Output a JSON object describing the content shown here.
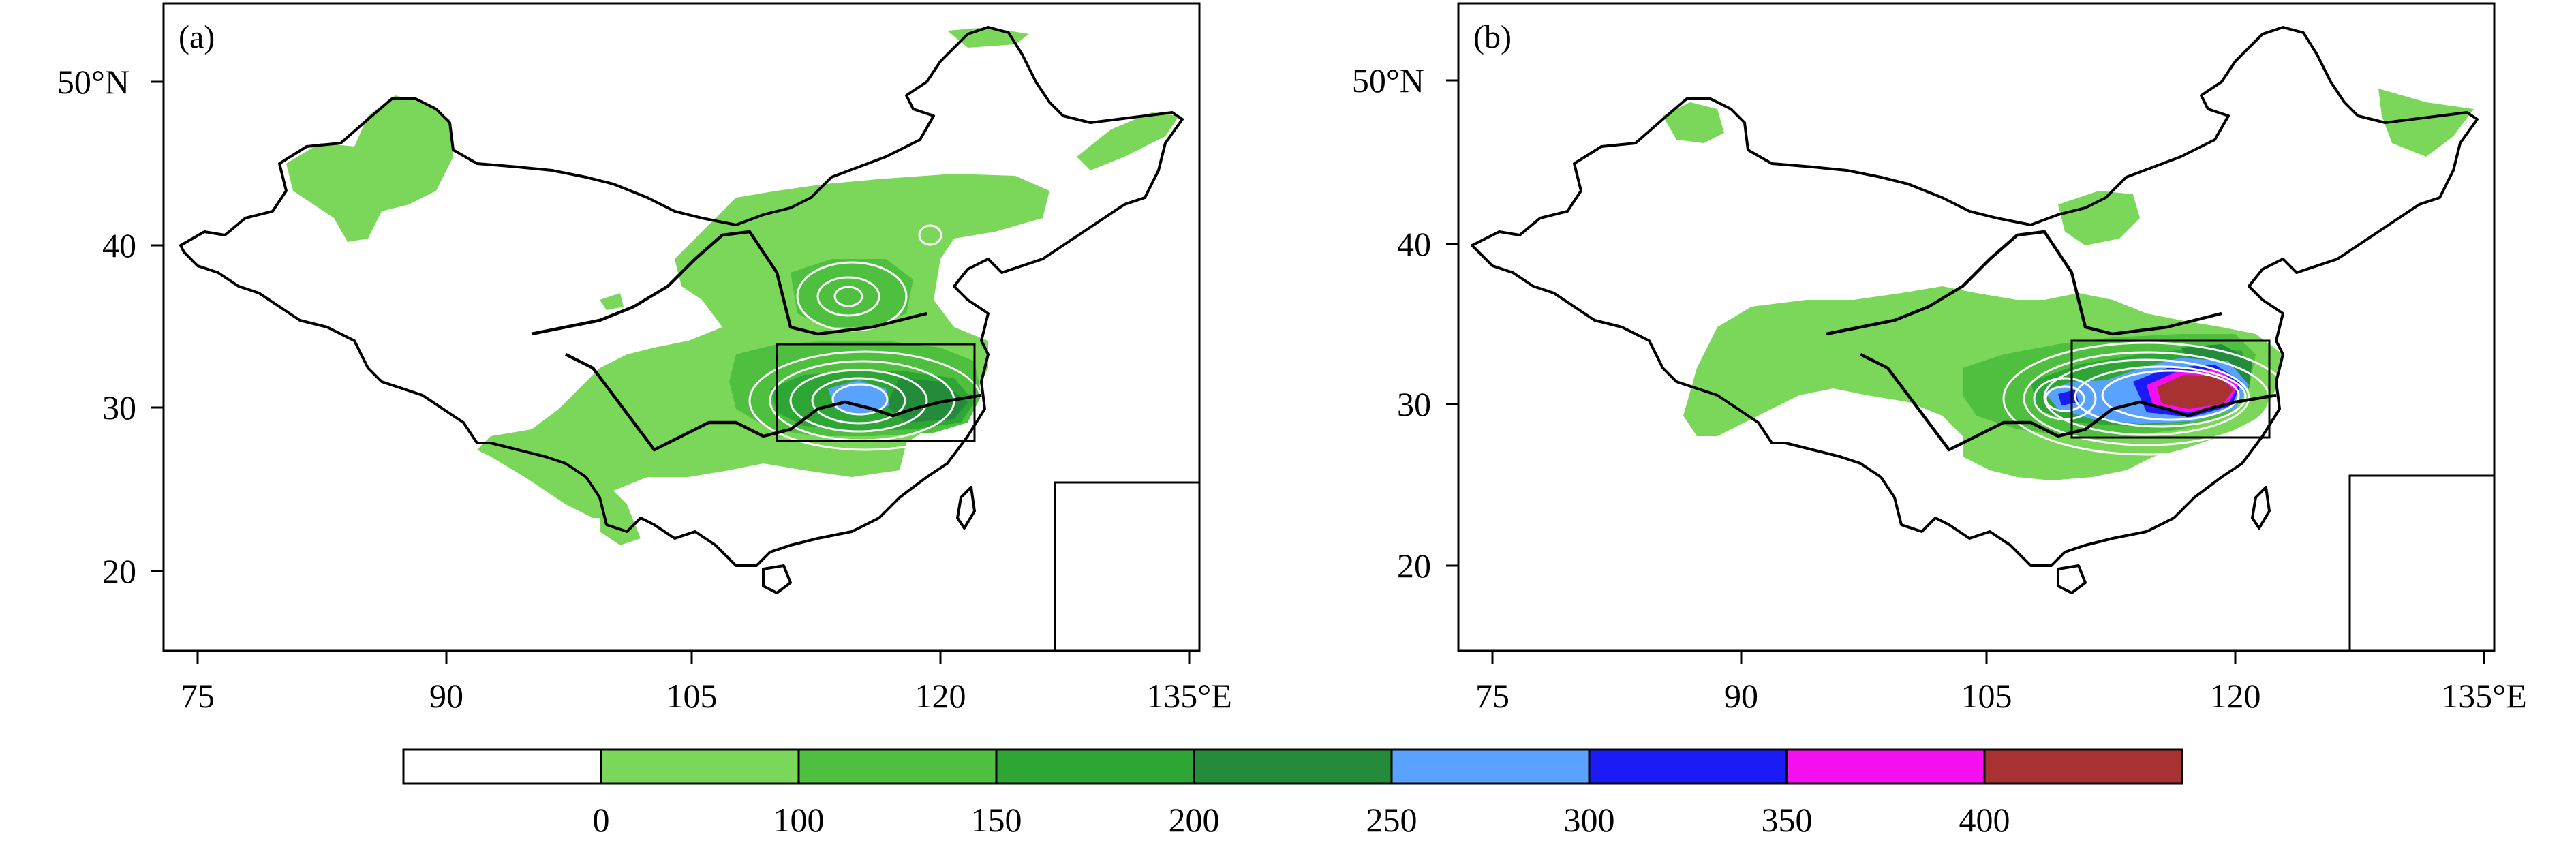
{
  "panels": [
    {
      "label": "(a)",
      "lat_ticks": [
        "50°N",
        "40",
        "30",
        "20"
      ],
      "lon_ticks": [
        "75",
        "90",
        "105",
        "120",
        "135°E"
      ]
    },
    {
      "label": "(b)",
      "lat_ticks": [
        "50°N",
        "40",
        "30",
        "20"
      ],
      "lon_ticks": [
        "75",
        "90",
        "105",
        "120",
        "135°E"
      ]
    }
  ],
  "colorbar": {
    "labels": [
      "0",
      "100",
      "150",
      "200",
      "250",
      "300",
      "350",
      "400"
    ],
    "colors": [
      "#ffffff",
      "#7bd75a",
      "#4fbf3f",
      "#2ea635",
      "#238b3a",
      "#5aa2ff",
      "#1b1bf5",
      "#f50ff0",
      "#a83232"
    ]
  },
  "colors": {
    "lightgreen": "#7bd75a",
    "green2": "#4fbf3f",
    "green3": "#2ea635",
    "green4": "#238b3a",
    "lightblue": "#5aa2ff",
    "blue": "#1b1bf5",
    "magenta": "#f50ff0",
    "brown": "#a83232"
  }
}
